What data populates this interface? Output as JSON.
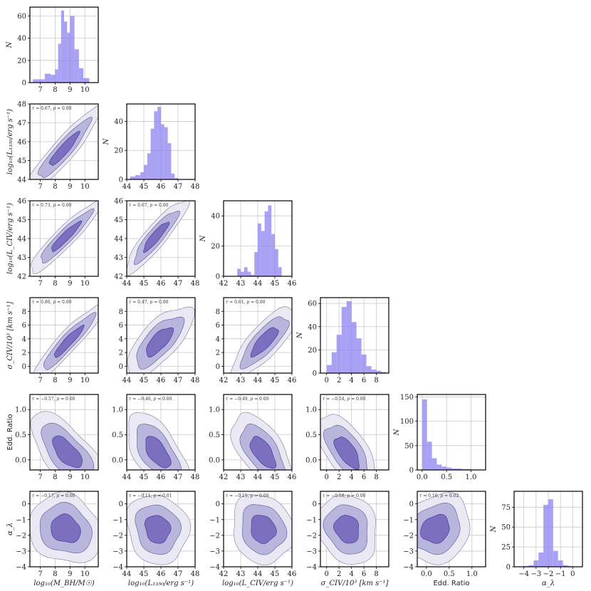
{
  "chart_data": {
    "type": "corner",
    "variables": [
      {
        "key": "mbh",
        "xlabel": "log10(M_BH/M_sun)",
        "xlabel_display": "log₁₀(M",
        "xlabel_sub": "BH",
        "xlabel_rest": "/M☉)",
        "ylabel_display": "",
        "range": [
          6.3,
          10.9
        ],
        "ticks": [
          "7",
          "8",
          "9",
          "10"
        ],
        "tick_values": [
          7,
          8,
          9,
          10
        ],
        "hist_bins": [
          6.5,
          6.9,
          7.3,
          7.7,
          8.0,
          8.2,
          8.4,
          8.6,
          8.8,
          9.0,
          9.3,
          9.6,
          9.9,
          10.3
        ],
        "hist_counts": [
          3,
          3,
          8,
          7,
          12,
          35,
          65,
          55,
          45,
          60,
          30,
          13,
          4
        ],
        "hist_ylim": [
          0,
          68
        ],
        "hist_yticks": [
          0,
          20,
          40,
          60
        ]
      },
      {
        "key": "l1350",
        "range": [
          44,
          48
        ],
        "ticks": [
          "44",
          "45",
          "46",
          "47",
          "48"
        ],
        "tick_values": [
          44,
          45,
          46,
          47,
          48
        ],
        "hist_bins": [
          44.2,
          44.5,
          44.8,
          45.0,
          45.2,
          45.4,
          45.6,
          45.8,
          46.0,
          46.2,
          46.4,
          46.6,
          46.8,
          47.0
        ],
        "hist_counts": [
          2,
          3,
          5,
          10,
          18,
          35,
          47,
          50,
          38,
          36,
          25,
          4,
          1
        ],
        "hist_ylim": [
          0,
          52
        ],
        "hist_yticks": [
          0,
          20,
          40
        ]
      },
      {
        "key": "lciv",
        "range": [
          42,
          46
        ],
        "ticks": [
          "42",
          "43",
          "44",
          "45",
          "46"
        ],
        "tick_values": [
          42,
          43,
          44,
          45,
          46
        ],
        "hist_bins": [
          42.8,
          43.0,
          43.2,
          43.4,
          43.6,
          43.8,
          44.0,
          44.2,
          44.4,
          44.6,
          44.8,
          45.0,
          45.2,
          45.4
        ],
        "hist_counts": [
          5,
          3,
          6,
          3,
          1,
          16,
          35,
          30,
          43,
          47,
          28,
          18,
          6
        ],
        "hist_ylim": [
          0,
          50
        ],
        "hist_yticks": [
          0,
          20,
          40
        ]
      },
      {
        "key": "sigma",
        "range": [
          -1,
          10
        ],
        "ticks": [
          "0",
          "2",
          "4",
          "6",
          "8"
        ],
        "tick_values": [
          0,
          2,
          4,
          6,
          8
        ],
        "hist_bins": [
          0,
          0.8,
          1.6,
          2.4,
          3.2,
          4.0,
          4.8,
          5.6,
          6.4,
          7.2,
          8.0,
          8.8,
          9.6
        ],
        "hist_counts": [
          7,
          18,
          33,
          57,
          62,
          44,
          30,
          16,
          6,
          3,
          2,
          1
        ],
        "hist_ylim": [
          0,
          65
        ],
        "hist_yticks": [
          0,
          20,
          40,
          60
        ]
      },
      {
        "key": "edd",
        "range": [
          -0.2,
          1.3
        ],
        "ticks": [
          "0.0",
          "0.5",
          "1.0"
        ],
        "tick_values": [
          0,
          0.5,
          1.0
        ],
        "hist_bins": [
          0,
          0.1,
          0.2,
          0.3,
          0.4,
          0.5,
          0.6,
          0.8,
          1.0,
          1.2
        ],
        "hist_counts": [
          145,
          58,
          24,
          11,
          7,
          5,
          3,
          2,
          1
        ],
        "hist_ylim": [
          0,
          155
        ],
        "hist_yticks": [
          0,
          50,
          100,
          150
        ],
        "hist_xticks": [
          "0.0",
          "0.5",
          "1.0"
        ],
        "hist_xtick_values": [
          0,
          0.5,
          1.0
        ],
        "hist_xlim": [
          -0.1,
          1.3
        ]
      },
      {
        "key": "alpha",
        "range": [
          -4.0,
          0.8
        ],
        "ticks": [
          "−4",
          "−3",
          "−2",
          "−1",
          "0"
        ],
        "tick_values": [
          -4,
          -3,
          -2,
          -1,
          0
        ],
        "hist_bins": [
          -4.4,
          -4.0,
          -3.6,
          -3.2,
          -2.8,
          -2.4,
          -2.0,
          -1.6,
          -1.2,
          -0.8,
          -0.4,
          0.0
        ],
        "hist_counts": [
          0,
          1,
          2,
          8,
          18,
          78,
          85,
          20,
          8,
          2,
          1
        ],
        "hist_ylim": [
          0,
          95
        ],
        "hist_yticks": [
          0,
          25,
          50,
          75
        ],
        "hist_xticks": [
          "−4",
          "−3",
          "−2",
          "−1",
          "0"
        ],
        "hist_xtick_values": [
          -4,
          -3,
          -2,
          -1,
          0
        ],
        "hist_xlim": [
          -4.8,
          0.8
        ]
      }
    ],
    "hist_ylabel": "N",
    "row_labels": [
      "",
      "log₁₀(L₁₃₅₀/erg s⁻¹)",
      "log₁₀(L_CIV/erg s⁻¹)",
      "σ_CIV/10³ [km s⁻¹]",
      "Edd. Ratio",
      "α_λ"
    ],
    "x_labels": [
      "log₁₀(M_BH/M☉)",
      "log₁₀(L₁₃₅₀/erg s⁻¹)",
      "log₁₀(L_CIV/erg s⁻¹)",
      "σ_CIV/10³ [km s⁻¹]",
      "Edd. Ratio",
      "α_λ"
    ],
    "ylims": {
      "l1350": [
        44,
        48
      ],
      "lciv": [
        42,
        46
      ],
      "sigma": [
        -1,
        10
      ],
      "edd": [
        -0.2,
        1.3
      ],
      "alpha": [
        -4.0,
        0.8
      ]
    },
    "yticks": {
      "l1350": {
        "labels": [
          "44",
          "45",
          "46",
          "47",
          "48"
        ],
        "values": [
          44,
          45,
          46,
          47,
          48
        ]
      },
      "lciv": {
        "labels": [
          "42",
          "43",
          "44",
          "45",
          "46"
        ],
        "values": [
          42,
          43,
          44,
          45,
          46
        ]
      },
      "sigma": {
        "labels": [
          "0",
          "2",
          "4",
          "6",
          "8"
        ],
        "values": [
          0,
          2,
          4,
          6,
          8
        ]
      },
      "edd": {
        "labels": [
          "0.0",
          "0.5",
          "1.0"
        ],
        "values": [
          0,
          0.5,
          1.0
        ]
      },
      "alpha": {
        "labels": [
          "−4",
          "−3",
          "−2",
          "−1",
          "0"
        ],
        "values": [
          -4,
          -3,
          -2,
          -1,
          0
        ]
      }
    },
    "correlations": [
      {
        "row": 1,
        "col": 0,
        "tau": "0.67",
        "p": "0.00"
      },
      {
        "row": 2,
        "col": 0,
        "tau": "0.73",
        "p": "0.00"
      },
      {
        "row": 2,
        "col": 1,
        "tau": "0.67",
        "p": "0.00"
      },
      {
        "row": 3,
        "col": 0,
        "tau": "0.80",
        "p": "0.00"
      },
      {
        "row": 3,
        "col": 1,
        "tau": "0.47",
        "p": "0.00"
      },
      {
        "row": 3,
        "col": 2,
        "tau": "0.61",
        "p": "0.00"
      },
      {
        "row": 4,
        "col": 0,
        "tau": "−0.57",
        "p": "0.00"
      },
      {
        "row": 4,
        "col": 1,
        "tau": "−0.46",
        "p": "0.00"
      },
      {
        "row": 4,
        "col": 2,
        "tau": "−0.49",
        "p": "0.00"
      },
      {
        "row": 4,
        "col": 3,
        "tau": "−0.54",
        "p": "0.00"
      },
      {
        "row": 5,
        "col": 0,
        "tau": "−0.17",
        "p": "0.00"
      },
      {
        "row": 5,
        "col": 1,
        "tau": "−0.11",
        "p": "0.01"
      },
      {
        "row": 5,
        "col": 2,
        "tau": "−0.15",
        "p": "0.00"
      },
      {
        "row": 5,
        "col": 3,
        "tau": "−0.18",
        "p": "0.00"
      },
      {
        "row": 5,
        "col": 4,
        "tau": "0.16",
        "p": "0.02"
      }
    ],
    "contours": [
      {
        "row": 1,
        "col": 0,
        "cx": 8.6,
        "cy": 45.6,
        "sx": 0.95,
        "sy": 0.85,
        "rho": 0.92
      },
      {
        "row": 2,
        "col": 0,
        "cx": 8.7,
        "cy": 44.1,
        "sx": 0.95,
        "sy": 0.75,
        "rho": 0.93
      },
      {
        "row": 2,
        "col": 1,
        "cx": 45.7,
        "cy": 44.1,
        "sx": 0.7,
        "sy": 0.75,
        "rho": 0.9
      },
      {
        "row": 3,
        "col": 0,
        "cx": 8.9,
        "cy": 3.6,
        "sx": 0.95,
        "sy": 2.2,
        "rho": 0.93
      },
      {
        "row": 3,
        "col": 1,
        "cx": 45.9,
        "cy": 3.6,
        "sx": 0.75,
        "sy": 2.0,
        "rho": 0.72
      },
      {
        "row": 3,
        "col": 2,
        "cx": 44.4,
        "cy": 3.6,
        "sx": 0.75,
        "sy": 2.0,
        "rho": 0.8
      },
      {
        "row": 4,
        "col": 0,
        "cx": 8.8,
        "cy": 0.15,
        "sx": 0.95,
        "sy": 0.3,
        "rho": -0.65
      },
      {
        "row": 4,
        "col": 1,
        "cx": 45.8,
        "cy": 0.15,
        "sx": 0.7,
        "sy": 0.3,
        "rho": -0.6
      },
      {
        "row": 4,
        "col": 2,
        "cx": 44.3,
        "cy": 0.15,
        "sx": 0.7,
        "sy": 0.3,
        "rho": -0.62
      },
      {
        "row": 4,
        "col": 3,
        "cx": 3.3,
        "cy": 0.15,
        "sx": 1.9,
        "sy": 0.3,
        "rho": -0.65
      },
      {
        "row": 5,
        "col": 0,
        "cx": 8.7,
        "cy": -1.6,
        "sx": 0.95,
        "sy": 0.85,
        "rho": -0.15
      },
      {
        "row": 5,
        "col": 1,
        "cx": 45.8,
        "cy": -1.6,
        "sx": 0.7,
        "sy": 0.85,
        "rho": -0.1
      },
      {
        "row": 5,
        "col": 2,
        "cx": 44.3,
        "cy": -1.6,
        "sx": 0.7,
        "sy": 0.85,
        "rho": -0.12
      },
      {
        "row": 5,
        "col": 3,
        "cx": 3.3,
        "cy": -1.6,
        "sx": 1.9,
        "sy": 0.85,
        "rho": -0.15
      },
      {
        "row": 5,
        "col": 4,
        "cx": 0.2,
        "cy": -1.6,
        "sx": 0.3,
        "sy": 0.85,
        "rho": 0.15
      }
    ]
  }
}
